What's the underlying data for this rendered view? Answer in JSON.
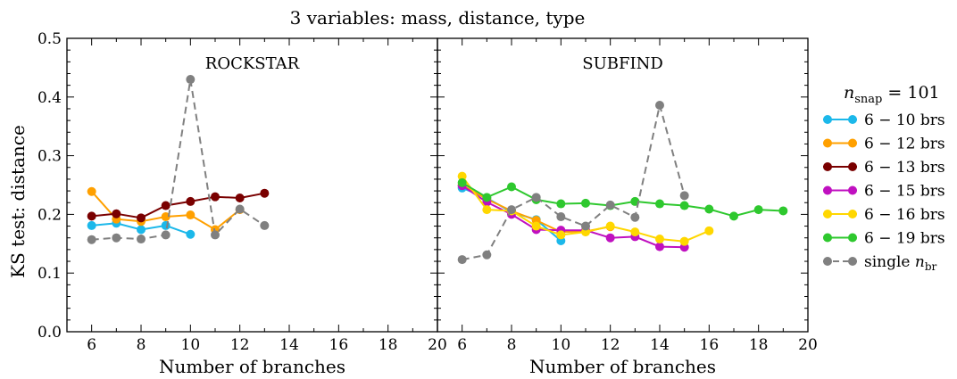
{
  "figure": {
    "title": "3 variables: mass, distance, type",
    "ylabel": "KS test: distance"
  },
  "legend": {
    "title_main": "n",
    "title_sub": "snap",
    "title_eq": " = 101",
    "entries": [
      {
        "label": "6 − 10 brs",
        "color": "#1cb8ea",
        "style": "solid"
      },
      {
        "label": "6 − 12 brs",
        "color": "#ffa000",
        "style": "solid"
      },
      {
        "label": "6 − 13 brs",
        "color": "#7a0000",
        "style": "solid"
      },
      {
        "label": "6 − 15 brs",
        "color": "#c010c0",
        "style": "solid"
      },
      {
        "label": "6 − 16 brs",
        "color": "#ffd700",
        "style": "solid"
      },
      {
        "label": "6 − 19 brs",
        "color": "#2ec82e",
        "style": "solid"
      },
      {
        "label": "single ",
        "label_math": "n",
        "label_sub": "br",
        "color": "#808080",
        "style": "dashed"
      }
    ]
  },
  "chart_data": [
    {
      "type": "line",
      "title": "ROCKSTAR",
      "xlabel": "Number of branches",
      "ylabel": "KS test: distance",
      "xlim": [
        5,
        20
      ],
      "ylim": [
        0.0,
        0.5
      ],
      "xticks": [
        "6",
        "8",
        "10",
        "12",
        "14",
        "16",
        "18",
        "20"
      ],
      "yticks": [
        "0.0",
        "0.1",
        "0.2",
        "0.3",
        "0.4",
        "0.5"
      ],
      "series": [
        {
          "name": "6 − 10 brs",
          "color": "#1cb8ea",
          "dashed": false,
          "x": [
            6,
            7,
            8,
            9,
            10
          ],
          "y": [
            0.181,
            0.185,
            0.174,
            0.181,
            0.166
          ]
        },
        {
          "name": "6 − 12 brs",
          "color": "#ffa000",
          "dashed": false,
          "x": [
            6,
            7,
            8,
            9,
            10,
            11,
            12
          ],
          "y": [
            0.239,
            0.192,
            0.188,
            0.196,
            0.199,
            0.174,
            0.208
          ]
        },
        {
          "name": "6 − 13 brs",
          "color": "#7a0000",
          "dashed": false,
          "x": [
            6,
            7,
            8,
            9,
            10,
            11,
            12,
            13
          ],
          "y": [
            0.197,
            0.201,
            0.194,
            0.215,
            0.222,
            0.23,
            0.228,
            0.236
          ]
        },
        {
          "name": "single n_br",
          "color": "#808080",
          "dashed": true,
          "x": [
            6,
            7,
            8,
            9,
            10,
            11,
            12,
            13
          ],
          "y": [
            0.157,
            0.16,
            0.158,
            0.165,
            0.43,
            0.165,
            0.209,
            0.181
          ]
        }
      ]
    },
    {
      "type": "line",
      "title": "SUBFIND",
      "xlabel": "Number of branches",
      "xlim": [
        5,
        20
      ],
      "ylim": [
        0.0,
        0.5
      ],
      "xticks": [
        "6",
        "8",
        "10",
        "12",
        "14",
        "16",
        "18",
        "20"
      ],
      "series": [
        {
          "name": "6 − 10 brs",
          "color": "#1cb8ea",
          "dashed": false,
          "x": [
            6,
            7,
            8,
            9,
            10
          ],
          "y": [
            0.245,
            0.228,
            0.204,
            0.191,
            0.155
          ]
        },
        {
          "name": "6 − 12 brs",
          "color": "#ffa000",
          "dashed": false,
          "x": [
            6,
            7,
            8,
            9,
            10,
            11,
            12
          ],
          "y": [
            0.25,
            0.226,
            0.206,
            0.19,
            0.17,
            0.171,
            0.179
          ]
        },
        {
          "name": "6 − 15 brs",
          "color": "#c010c0",
          "dashed": false,
          "x": [
            6,
            7,
            8,
            9,
            10,
            11,
            12,
            13,
            14,
            15
          ],
          "y": [
            0.249,
            0.221,
            0.2,
            0.174,
            0.173,
            0.173,
            0.16,
            0.162,
            0.145,
            0.144
          ]
        },
        {
          "name": "6 − 16 brs",
          "color": "#ffd700",
          "dashed": false,
          "x": [
            6,
            7,
            8,
            9,
            10,
            11,
            12,
            13,
            14,
            15,
            16
          ],
          "y": [
            0.265,
            0.208,
            0.206,
            0.18,
            0.165,
            0.17,
            0.18,
            0.17,
            0.158,
            0.154,
            0.172
          ]
        },
        {
          "name": "6 − 19 brs",
          "color": "#2ec82e",
          "dashed": false,
          "x": [
            6,
            7,
            8,
            9,
            10,
            11,
            12,
            13,
            14,
            15,
            16,
            17,
            18,
            19
          ],
          "y": [
            0.254,
            0.229,
            0.247,
            0.225,
            0.218,
            0.219,
            0.215,
            0.222,
            0.218,
            0.215,
            0.209,
            0.197,
            0.208,
            0.206
          ]
        },
        {
          "name": "single n_br",
          "color": "#808080",
          "dashed": true,
          "x": [
            6,
            7,
            8,
            9,
            10,
            11,
            12,
            13,
            14,
            15
          ],
          "y": [
            0.123,
            0.131,
            0.208,
            0.229,
            0.196,
            0.18,
            0.216,
            0.195,
            0.386,
            0.232
          ]
        }
      ]
    }
  ]
}
